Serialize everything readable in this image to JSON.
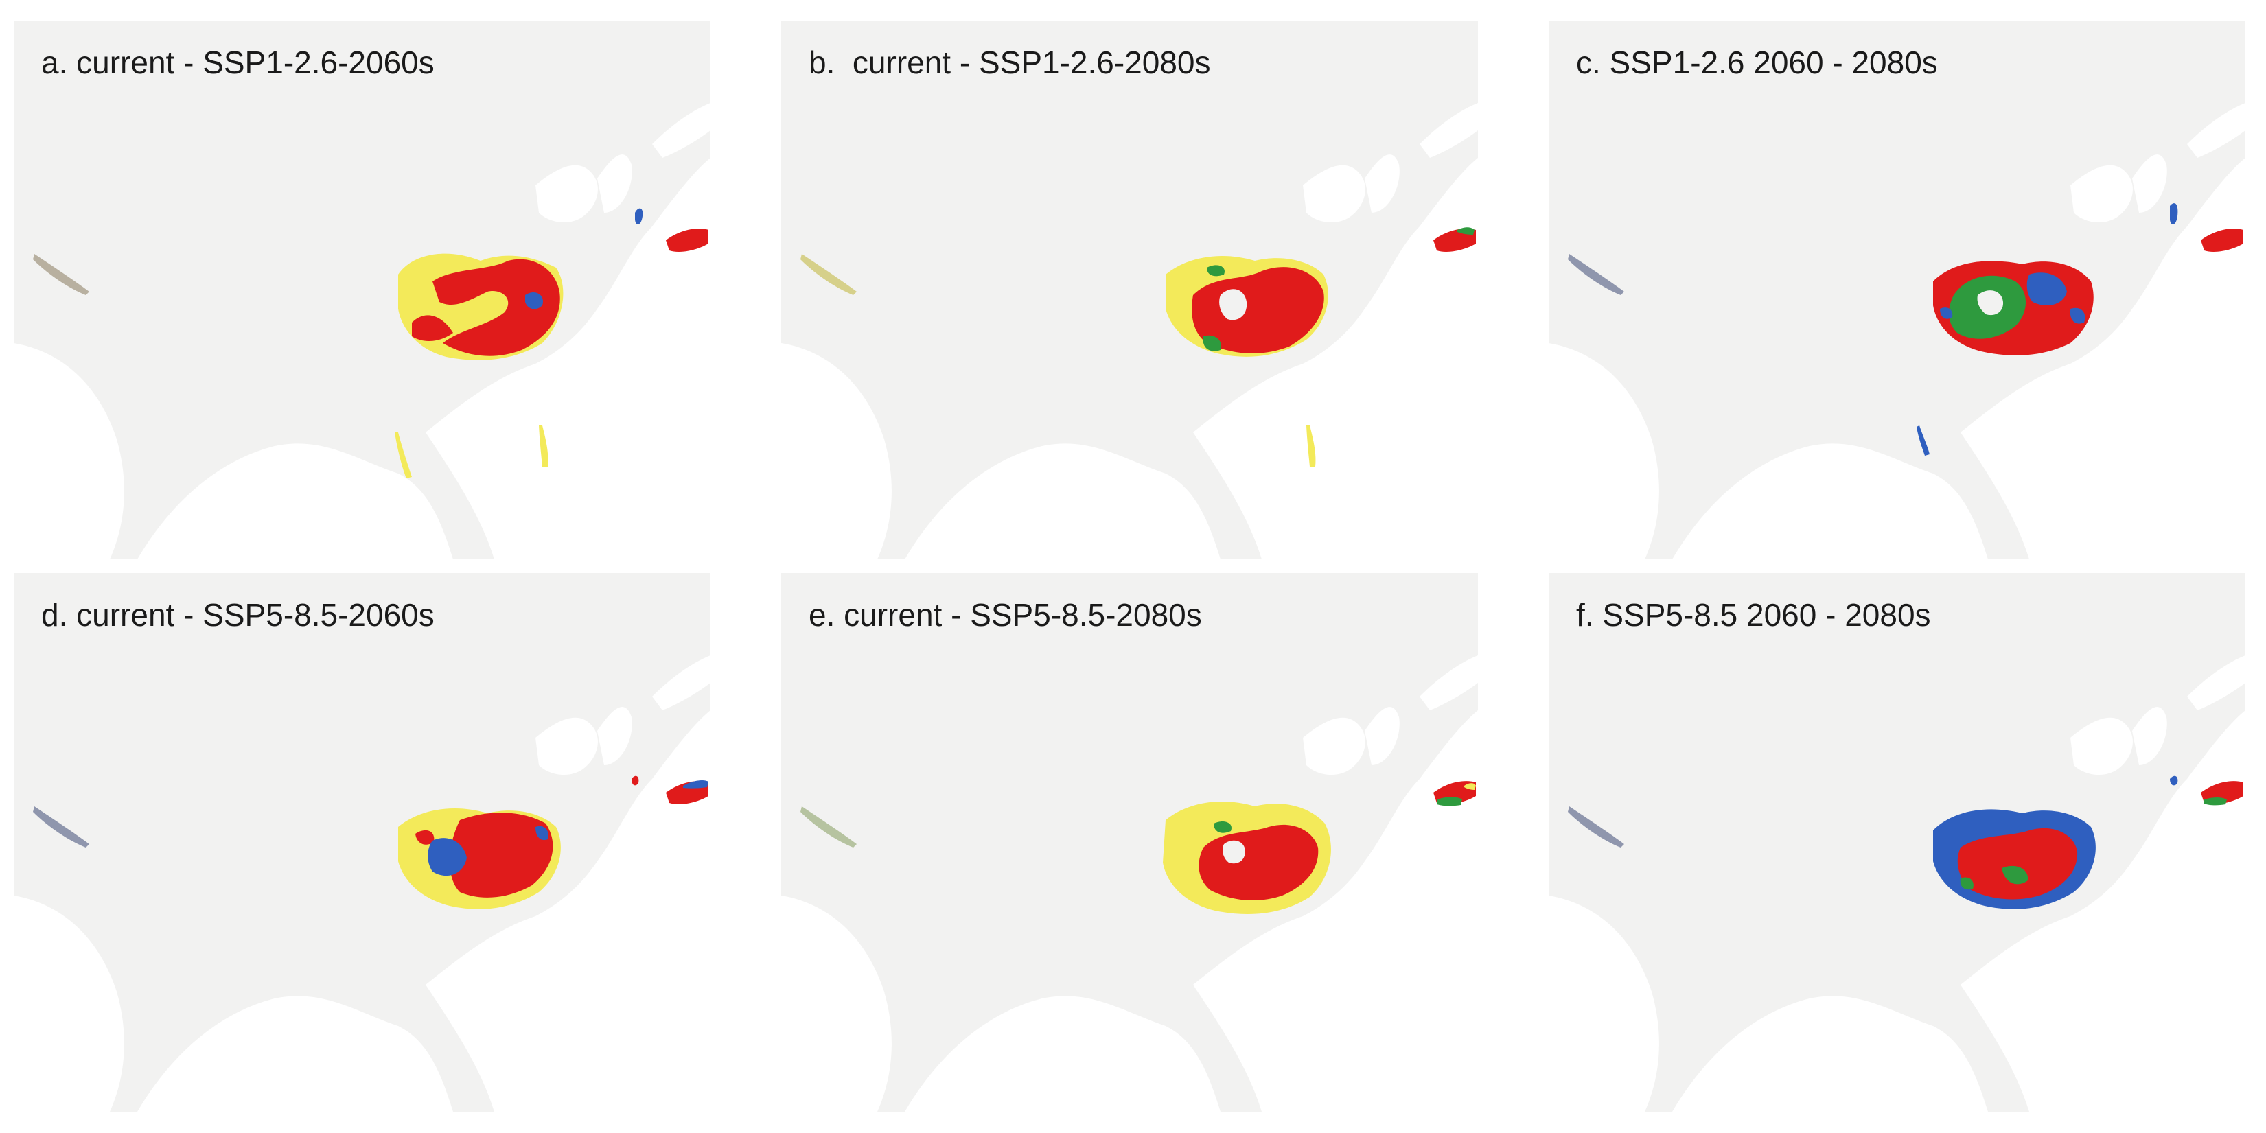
{
  "figure": {
    "panels": [
      {
        "id": "a",
        "label": "a. current - SSP1-2.6-2060s"
      },
      {
        "id": "b",
        "label": "b.  current - SSP1-2.6-2080s"
      },
      {
        "id": "c",
        "label": "c. SSP1-2.6 2060 - 2080s"
      },
      {
        "id": "d",
        "label": "d. current - SSP5-8.5-2060s"
      },
      {
        "id": "e",
        "label": "e. current - SSP5-8.5-2080s"
      },
      {
        "id": "f",
        "label": "f. SSP5-8.5 2060 - 2080s"
      }
    ],
    "colors": {
      "land": "#f2f2f1",
      "sea": "#ffffff",
      "red": "#e01b1b",
      "yellow": "#f3ea5a",
      "blue": "#2f5fbf",
      "green": "#2e9a3e"
    }
  }
}
